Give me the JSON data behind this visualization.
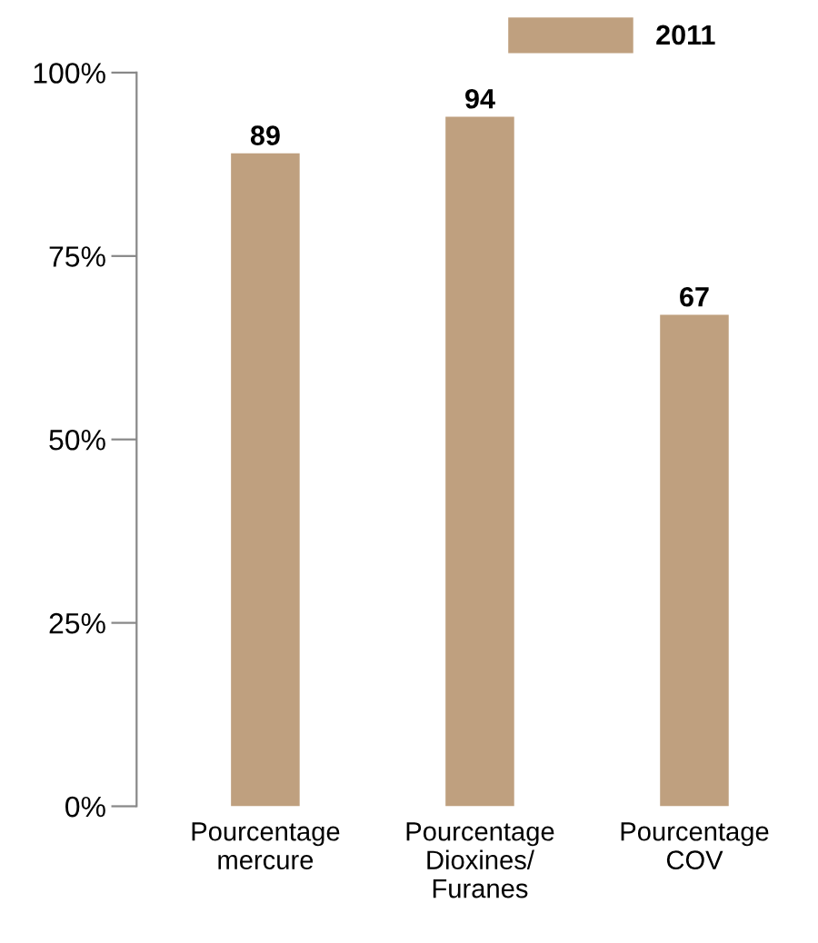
{
  "chart_data": {
    "type": "bar",
    "categories": [
      "Pourcentage\nmercure",
      "Pourcentage\nDioxines/\nFuranes",
      "Pourcentage\nCOV"
    ],
    "series": [
      {
        "name": "2011",
        "color": "#bfa07f",
        "values": [
          89,
          94,
          67
        ]
      }
    ],
    "ylim": [
      0,
      100
    ],
    "yticks": [
      {
        "value": 0,
        "label": "0%"
      },
      {
        "value": 25,
        "label": "25%"
      },
      {
        "value": 50,
        "label": "50%"
      },
      {
        "value": 75,
        "label": "75%"
      },
      {
        "value": 100,
        "label": "100%"
      }
    ],
    "data_labels": true,
    "legend": "top right",
    "grid": false
  }
}
